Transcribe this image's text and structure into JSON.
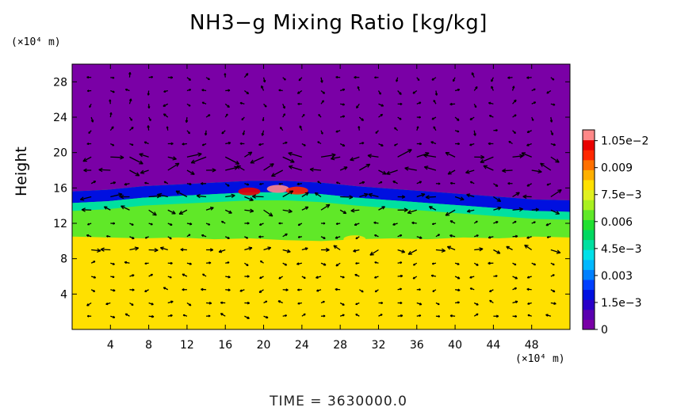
{
  "chart_data": {
    "type": "heatmap",
    "title": "NH3−g Mixing Ratio [kg/kg]",
    "ylabel": "Height",
    "y_unit": "(×10⁴ m)",
    "x_unit": "(×10⁴ m)",
    "footer": "TIME  =  3630000.0",
    "xlim": [
      0,
      52
    ],
    "ylim": [
      0,
      30
    ],
    "x_ticks": [
      {
        "value": 4,
        "label": "4"
      },
      {
        "value": 8,
        "label": "8"
      },
      {
        "value": 12,
        "label": "12"
      },
      {
        "value": 16,
        "label": "16"
      },
      {
        "value": 20,
        "label": "20"
      },
      {
        "value": 24,
        "label": "24"
      },
      {
        "value": 28,
        "label": "28"
      },
      {
        "value": 32,
        "label": "32"
      },
      {
        "value": 36,
        "label": "36"
      },
      {
        "value": 40,
        "label": "40"
      },
      {
        "value": 44,
        "label": "44"
      },
      {
        "value": 48,
        "label": "48"
      }
    ],
    "y_ticks": [
      {
        "value": 4,
        "label": "4"
      },
      {
        "value": 8,
        "label": "8"
      },
      {
        "value": 12,
        "label": "12"
      },
      {
        "value": 16,
        "label": "16"
      },
      {
        "value": 20,
        "label": "20"
      },
      {
        "value": 24,
        "label": "24"
      },
      {
        "value": 28,
        "label": "28"
      }
    ],
    "colorbar": {
      "min": 0,
      "max": 0.0111,
      "labels": [
        {
          "value": 0,
          "label": "0"
        },
        {
          "value": 0.0015,
          "label": "1.5e−3"
        },
        {
          "value": 0.003,
          "label": "0.003"
        },
        {
          "value": 0.0045,
          "label": "4.5e−3"
        },
        {
          "value": 0.006,
          "label": "0.006"
        },
        {
          "value": 0.0075,
          "label": "7.5e−3"
        },
        {
          "value": 0.009,
          "label": "0.009"
        },
        {
          "value": 0.0105,
          "label": "1.05e−2"
        }
      ],
      "colors": [
        "#7a00a6",
        "#5a00b0",
        "#2a00c8",
        "#0010e0",
        "#0040ff",
        "#0080ff",
        "#00b8ff",
        "#00e0e8",
        "#00e0a0",
        "#00d860",
        "#20e030",
        "#60e828",
        "#a8f020",
        "#e0f020",
        "#ffe000",
        "#ffb000",
        "#ff7000",
        "#ff2800",
        "#e80000",
        "#ff8888"
      ]
    },
    "field": {
      "layers": [
        {
          "name": "upper",
          "value": 0.0
        },
        {
          "name": "boundary_band",
          "value": 0.0018
        },
        {
          "name": "middle_mixed",
          "value": 0.0062
        },
        {
          "name": "lower_uniform",
          "value": 0.0082
        }
      ],
      "boundary_y": [
        15.6,
        15.8,
        16.2,
        16.4,
        16.6,
        16.8,
        16.8,
        16.6,
        16.2,
        15.9,
        15.6,
        15.3,
        15.0,
        14.7,
        14.6
      ],
      "lower_top_y": [
        10.5,
        10.4,
        10.3,
        10.4,
        10.2,
        10.3,
        10.1,
        10.0,
        10.2,
        10.3,
        10.2,
        10.4,
        10.3,
        10.5,
        10.4
      ],
      "hot_spots": [
        {
          "x": 18.5,
          "y": 15.6,
          "value": 0.01
        },
        {
          "x": 21.5,
          "y": 15.9,
          "value": 0.0108
        },
        {
          "x": 23.5,
          "y": 15.7,
          "value": 0.0098
        },
        {
          "x": 29.5,
          "y": 10.2,
          "value": 0.0082
        }
      ]
    },
    "vectors": {
      "x_spacing": 2,
      "y_spacing": 1.5,
      "strong_rows": [
        {
          "y": 19.0,
          "magnitude": 1.6
        },
        {
          "y": 17.5,
          "magnitude": 1.3
        },
        {
          "y": 14.5,
          "magnitude": 1.2
        },
        {
          "y": 13.0,
          "magnitude": 1.0
        },
        {
          "y": 9.0,
          "magnitude": 0.9
        }
      ]
    }
  }
}
